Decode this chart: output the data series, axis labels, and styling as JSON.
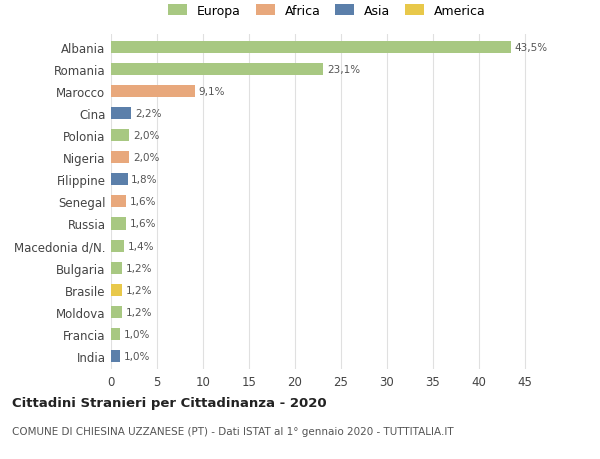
{
  "countries": [
    "Albania",
    "Romania",
    "Marocco",
    "Cina",
    "Polonia",
    "Nigeria",
    "Filippine",
    "Senegal",
    "Russia",
    "Macedonia d/N.",
    "Bulgaria",
    "Brasile",
    "Moldova",
    "Francia",
    "India"
  ],
  "values": [
    43.5,
    23.1,
    9.1,
    2.2,
    2.0,
    2.0,
    1.8,
    1.6,
    1.6,
    1.4,
    1.2,
    1.2,
    1.2,
    1.0,
    1.0
  ],
  "labels": [
    "43,5%",
    "23,1%",
    "9,1%",
    "2,2%",
    "2,0%",
    "2,0%",
    "1,8%",
    "1,6%",
    "1,6%",
    "1,4%",
    "1,2%",
    "1,2%",
    "1,2%",
    "1,0%",
    "1,0%"
  ],
  "colors": [
    "#a8c882",
    "#a8c882",
    "#e8a87c",
    "#5b7faa",
    "#a8c882",
    "#e8a87c",
    "#5b7faa",
    "#e8a87c",
    "#a8c882",
    "#a8c882",
    "#a8c882",
    "#e8c84a",
    "#a8c882",
    "#a8c882",
    "#5b7faa"
  ],
  "legend_labels": [
    "Europa",
    "Africa",
    "Asia",
    "America"
  ],
  "legend_colors": [
    "#a8c882",
    "#e8a87c",
    "#5b7faa",
    "#e8c84a"
  ],
  "title": "Cittadini Stranieri per Cittadinanza - 2020",
  "subtitle": "COMUNE DI CHIESINA UZZANESE (PT) - Dati ISTAT al 1° gennaio 2020 - TUTTITALIA.IT",
  "xlim": [
    0,
    47
  ],
  "xticks": [
    0,
    5,
    10,
    15,
    20,
    25,
    30,
    35,
    40,
    45
  ],
  "background_color": "#ffffff",
  "grid_color": "#e0e0e0"
}
